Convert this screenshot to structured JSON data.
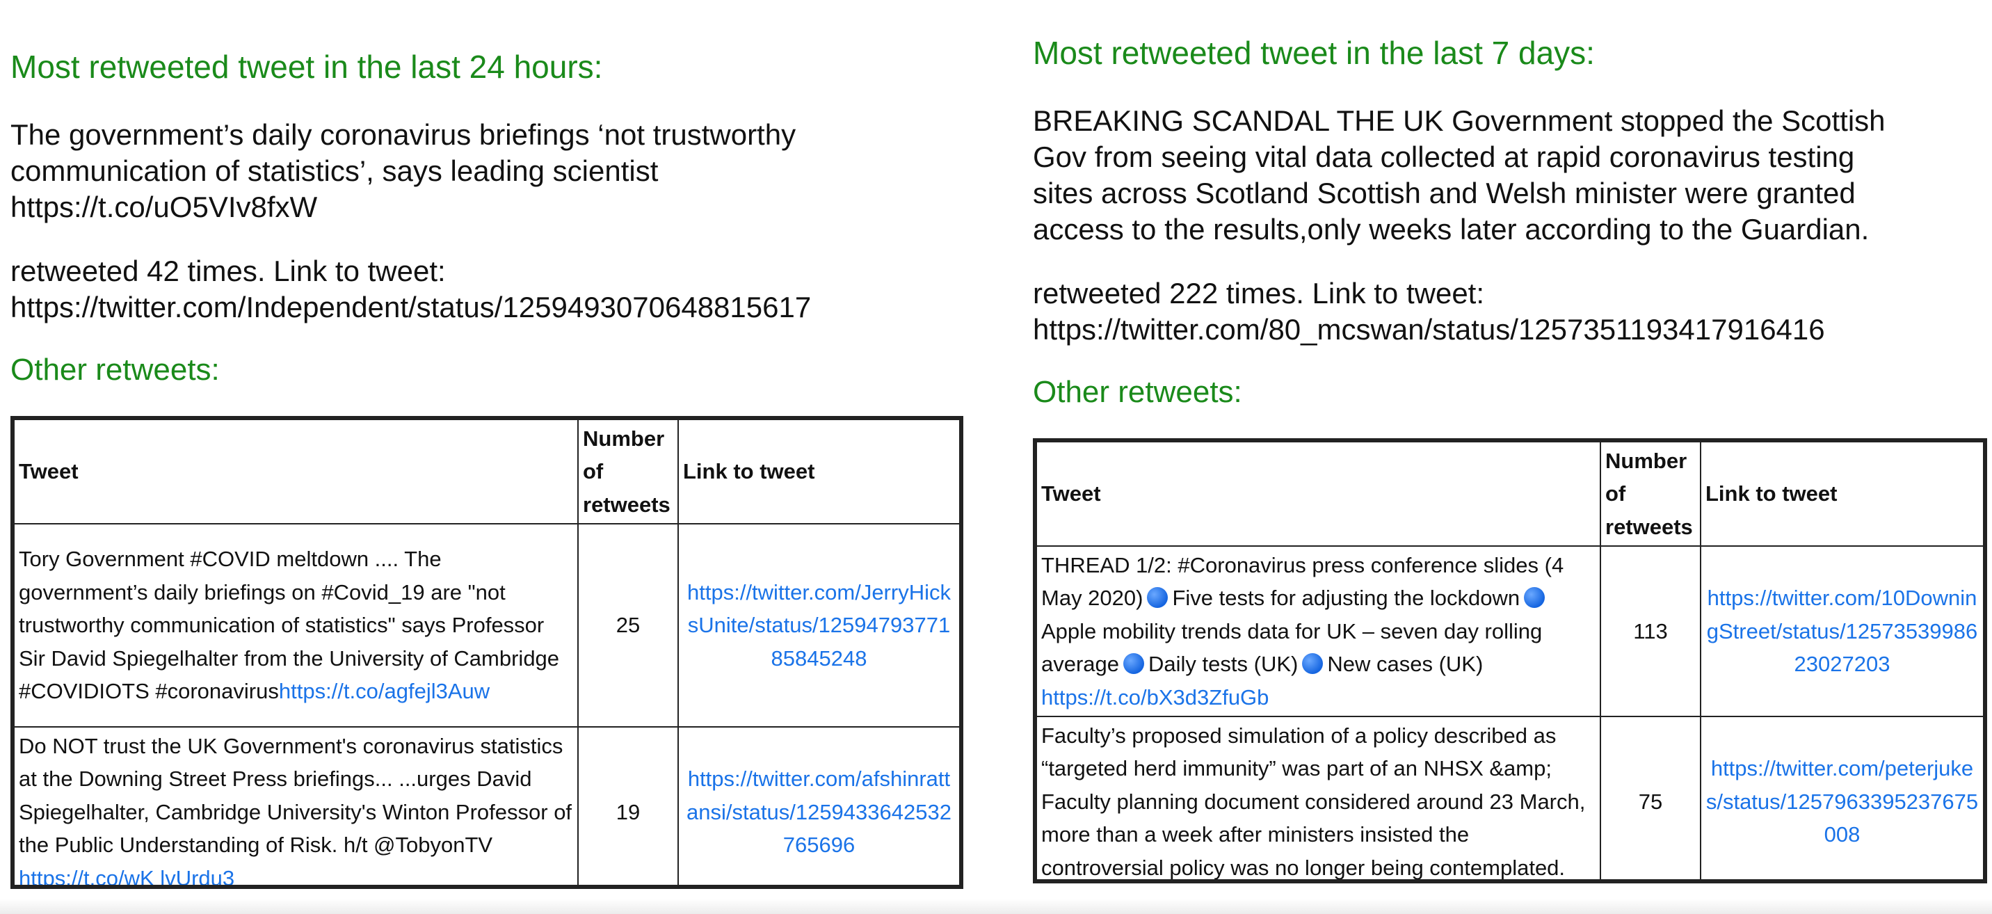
{
  "left": {
    "heading": "Most retweeted tweet in the last 24 hours:",
    "tweet_lines": [
      "The government’s daily coronavirus briefings ‘not trustworthy",
      "communication of statistics’, says leading scientist",
      "https://t.co/uO5VIv8fxW"
    ],
    "retweet_lines": [
      "retweeted 42 times. Link to tweet:",
      "https://twitter.com/Independent/status/1259493070648815617"
    ],
    "other_heading": "Other retweets:",
    "table": {
      "headers": {
        "tweet": "Tweet",
        "num_l1": "Number",
        "num_l2": "of",
        "num_l3": "retweets",
        "link": "Link to tweet"
      },
      "rows": [
        {
          "tweet": "Tory Government #COVID meltdown .... The government’s daily briefings on #Covid_19 are \"not trustworthy communication of statistics\" says Professor Sir David Spiegelhalter from the University of Cambridge #COVIDIOTS #coronavirus",
          "tweet_link": "https://t.co/agfejl3Auw",
          "count": "25",
          "link": "https://twitter.com/JerryHicksUnite/status/1259479377185845248"
        },
        {
          "tweet": "Do NOT trust the UK Government's coronavirus statistics at the Downing Street Press briefings... ...urges David Spiegelhalter, Cambridge University's Winton Professor of the Public Understanding of Risk. h/t @TobyonTV ",
          "tweet_link": "https://t.co/wK lvUrdu3",
          "count": "19",
          "link": "https://twitter.com/afshinrattansi/status/1259433642532765696"
        }
      ]
    }
  },
  "right": {
    "heading": "Most retweeted tweet in the last 7 days:",
    "tweet_lines": [
      "BREAKING SCANDAL THE UK Government stopped the Scottish",
      "Gov from seeing vital data collected at rapid coronavirus testing",
      "sites across Scotland Scottish and Welsh minister were granted",
      "access to the results,only weeks later according to the Guardian."
    ],
    "retweet_lines": [
      "retweeted 222 times. Link to tweet:",
      "https://twitter.com/80_mcswan/status/1257351193417916416"
    ],
    "other_heading": "Other retweets:",
    "table": {
      "headers": {
        "tweet": "Tweet",
        "num_l1": "Number",
        "num_l2": "of",
        "num_l3": "retweets",
        "link": "Link to tweet"
      },
      "rows": [
        {
          "tweet_parts": [
            "THREAD 1/2: #Coronavirus press conference slides (4 May 2020)",
            "Five tests for adjusting the lockdown",
            "Apple mobility trends data for UK – seven day rolling average",
            "Daily tests (UK)",
            "New cases (UK)"
          ],
          "tweet_link": "https://t.co/bX3d3ZfuGb",
          "count": "113",
          "link": "https://twitter.com/10DowningStreet/status/1257353998623027203"
        },
        {
          "tweet": "Faculty’s proposed simulation of a policy described as “targeted herd immunity” was part of an NHSX &amp; Faculty planning document considered around 23 March, more than a week after ministers insisted the controversial policy was no longer being contemplated.",
          "count": "75",
          "link": "https://twitter.com/peterjukes/status/1257963395237675008"
        }
      ]
    }
  },
  "colors": {
    "heading": "#1a8a1a",
    "link": "#1a73e8",
    "dot": "#1565e0"
  },
  "icons": {
    "dot": "blue-circle-emoji-icon"
  }
}
